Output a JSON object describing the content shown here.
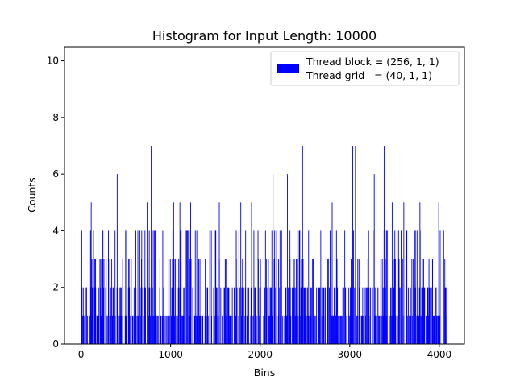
{
  "chart_data": {
    "type": "bar",
    "title": "Histogram for Input Length: 10000",
    "xlabel": "Bins",
    "ylabel": "Counts",
    "xlim": [
      -185,
      4280
    ],
    "ylim": [
      0,
      10.5
    ],
    "xticks": [
      0,
      1000,
      2000,
      3000,
      4000
    ],
    "yticks": [
      0,
      2,
      4,
      6,
      8,
      10
    ],
    "bar_color": "#0000ff",
    "legend": {
      "position": "top-right",
      "lines": [
        "Thread block = (256, 1, 1)",
        "Thread grid   = (40, 1, 1)"
      ]
    },
    "bins": {
      "count": 4096,
      "start": 0,
      "width": 1,
      "nonzero_bars": 660
    },
    "peaks": [
      {
        "x": 110,
        "y": 5
      },
      {
        "x": 400,
        "y": 6
      },
      {
        "x": 735,
        "y": 5
      },
      {
        "x": 780,
        "y": 7
      },
      {
        "x": 1030,
        "y": 5
      },
      {
        "x": 1100,
        "y": 5
      },
      {
        "x": 1220,
        "y": 5
      },
      {
        "x": 1540,
        "y": 5
      },
      {
        "x": 1780,
        "y": 5
      },
      {
        "x": 1900,
        "y": 5
      },
      {
        "x": 2140,
        "y": 6
      },
      {
        "x": 2300,
        "y": 6
      },
      {
        "x": 2470,
        "y": 7
      },
      {
        "x": 2800,
        "y": 5
      },
      {
        "x": 3030,
        "y": 7
      },
      {
        "x": 3060,
        "y": 7
      },
      {
        "x": 3270,
        "y": 6
      },
      {
        "x": 3380,
        "y": 7
      },
      {
        "x": 3470,
        "y": 5
      },
      {
        "x": 3600,
        "y": 5
      },
      {
        "x": 3780,
        "y": 5
      },
      {
        "x": 3990,
        "y": 5
      }
    ]
  }
}
